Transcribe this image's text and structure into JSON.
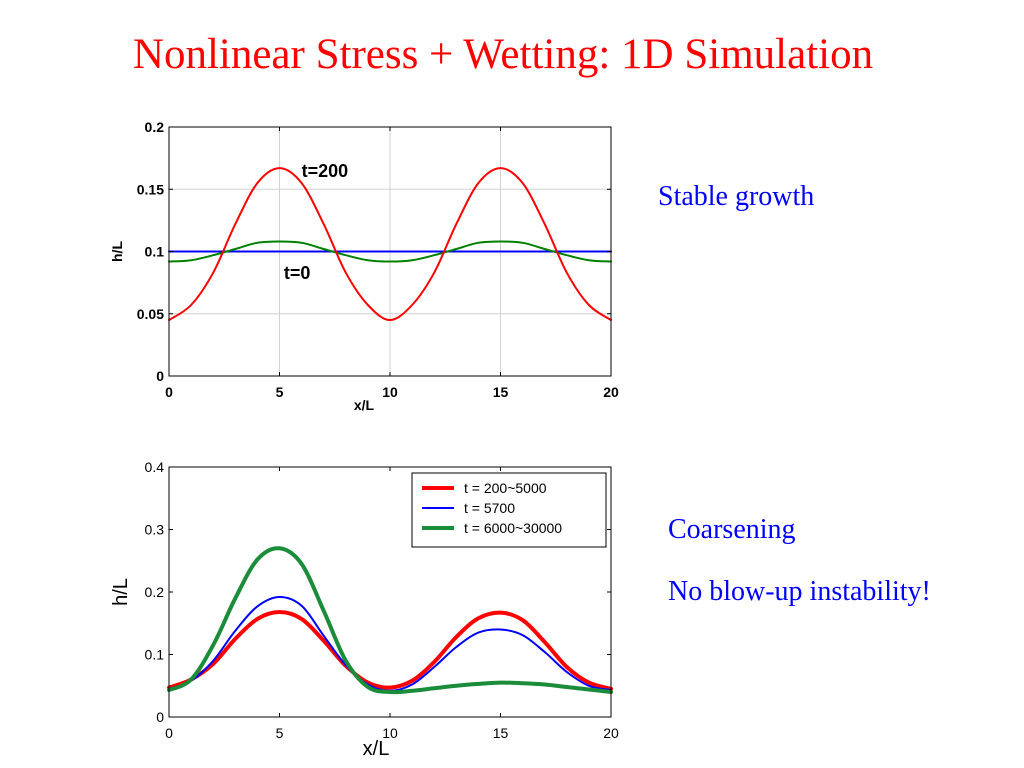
{
  "slide": {
    "title": "Nonlinear Stress + Wetting: 1D Simulation",
    "notes": {
      "stable": "Stable growth",
      "coarsening": "Coarsening",
      "blowup": "No blow-up instability!"
    }
  },
  "chart_data": [
    {
      "type": "line",
      "xlabel": "x/L",
      "ylabel": "h/L",
      "xlim": [
        0,
        20
      ],
      "ylim": [
        0,
        0.2
      ],
      "xticks": [
        0,
        5,
        10,
        15,
        20
      ],
      "yticks": [
        0,
        0.05,
        0.1,
        0.15,
        0.2
      ],
      "ytick_labels": [
        "0",
        "0.05",
        "0.1",
        "0.15",
        "0.2"
      ],
      "grid": true,
      "annotations": [
        {
          "text": "t=200",
          "x": 6.0,
          "y": 0.16
        },
        {
          "text": "t=0",
          "x": 5.2,
          "y": 0.078
        }
      ],
      "series": [
        {
          "color": "#0000ff",
          "width": 2,
          "x": [
            0,
            20
          ],
          "y": [
            0.1,
            0.1
          ]
        },
        {
          "color": "#008000",
          "width": 2,
          "x": [
            0,
            1,
            2,
            3,
            4,
            5,
            6,
            7,
            8,
            9,
            10,
            11,
            12,
            13,
            14,
            15,
            16,
            17,
            18,
            19,
            20
          ],
          "y": [
            0.092,
            0.093,
            0.097,
            0.102,
            0.107,
            0.108,
            0.107,
            0.102,
            0.097,
            0.093,
            0.092,
            0.093,
            0.097,
            0.102,
            0.107,
            0.108,
            0.107,
            0.102,
            0.097,
            0.093,
            0.092
          ]
        },
        {
          "color": "#ff0000",
          "width": 2,
          "x": [
            0,
            1,
            2,
            3,
            4,
            5,
            6,
            7,
            8,
            9,
            10,
            11,
            12,
            13,
            14,
            15,
            16,
            17,
            18,
            19,
            20
          ],
          "y": [
            0.045,
            0.057,
            0.083,
            0.122,
            0.155,
            0.167,
            0.155,
            0.122,
            0.083,
            0.057,
            0.045,
            0.057,
            0.083,
            0.122,
            0.155,
            0.167,
            0.155,
            0.122,
            0.083,
            0.057,
            0.045
          ]
        }
      ]
    },
    {
      "type": "line",
      "xlabel": "x/L",
      "ylabel": "h/L",
      "xlim": [
        0,
        20
      ],
      "ylim": [
        0,
        0.4
      ],
      "xticks": [
        0,
        5,
        10,
        15,
        20
      ],
      "yticks": [
        0,
        0.1,
        0.2,
        0.3,
        0.4
      ],
      "ytick_labels": [
        "0",
        "0.1",
        "0.2",
        "0.3",
        "0.4"
      ],
      "grid": false,
      "legend": "top-right",
      "series": [
        {
          "name": "t = 200~5000",
          "color": "#ff0000",
          "width": 4,
          "x": [
            0,
            1,
            2,
            3,
            4,
            5,
            6,
            7,
            8,
            9,
            10,
            11,
            12,
            13,
            14,
            15,
            16,
            17,
            18,
            19,
            20
          ],
          "y": [
            0.047,
            0.06,
            0.085,
            0.125,
            0.157,
            0.168,
            0.157,
            0.122,
            0.082,
            0.055,
            0.047,
            0.058,
            0.088,
            0.128,
            0.158,
            0.167,
            0.155,
            0.12,
            0.08,
            0.055,
            0.045
          ]
        },
        {
          "name": "t = 5700",
          "color": "#0000ff",
          "width": 2,
          "x": [
            0,
            1,
            2,
            3,
            4,
            5,
            6,
            7,
            8,
            9,
            10,
            11,
            12,
            13,
            14,
            15,
            16,
            17,
            18,
            19,
            20
          ],
          "y": [
            0.045,
            0.058,
            0.09,
            0.138,
            0.177,
            0.192,
            0.178,
            0.13,
            0.083,
            0.052,
            0.042,
            0.052,
            0.08,
            0.112,
            0.135,
            0.14,
            0.131,
            0.104,
            0.072,
            0.05,
            0.043
          ]
        },
        {
          "name": "t = 6000~30000",
          "color": "#1a8c3a",
          "width": 4,
          "x": [
            0,
            1,
            2,
            3,
            4,
            5,
            6,
            7,
            8,
            9,
            10,
            11,
            12,
            13,
            14,
            15,
            16,
            17,
            18,
            19,
            20
          ],
          "y": [
            0.043,
            0.06,
            0.115,
            0.19,
            0.252,
            0.27,
            0.245,
            0.17,
            0.09,
            0.048,
            0.04,
            0.042,
            0.046,
            0.05,
            0.053,
            0.055,
            0.054,
            0.052,
            0.048,
            0.044,
            0.04
          ]
        }
      ]
    }
  ]
}
